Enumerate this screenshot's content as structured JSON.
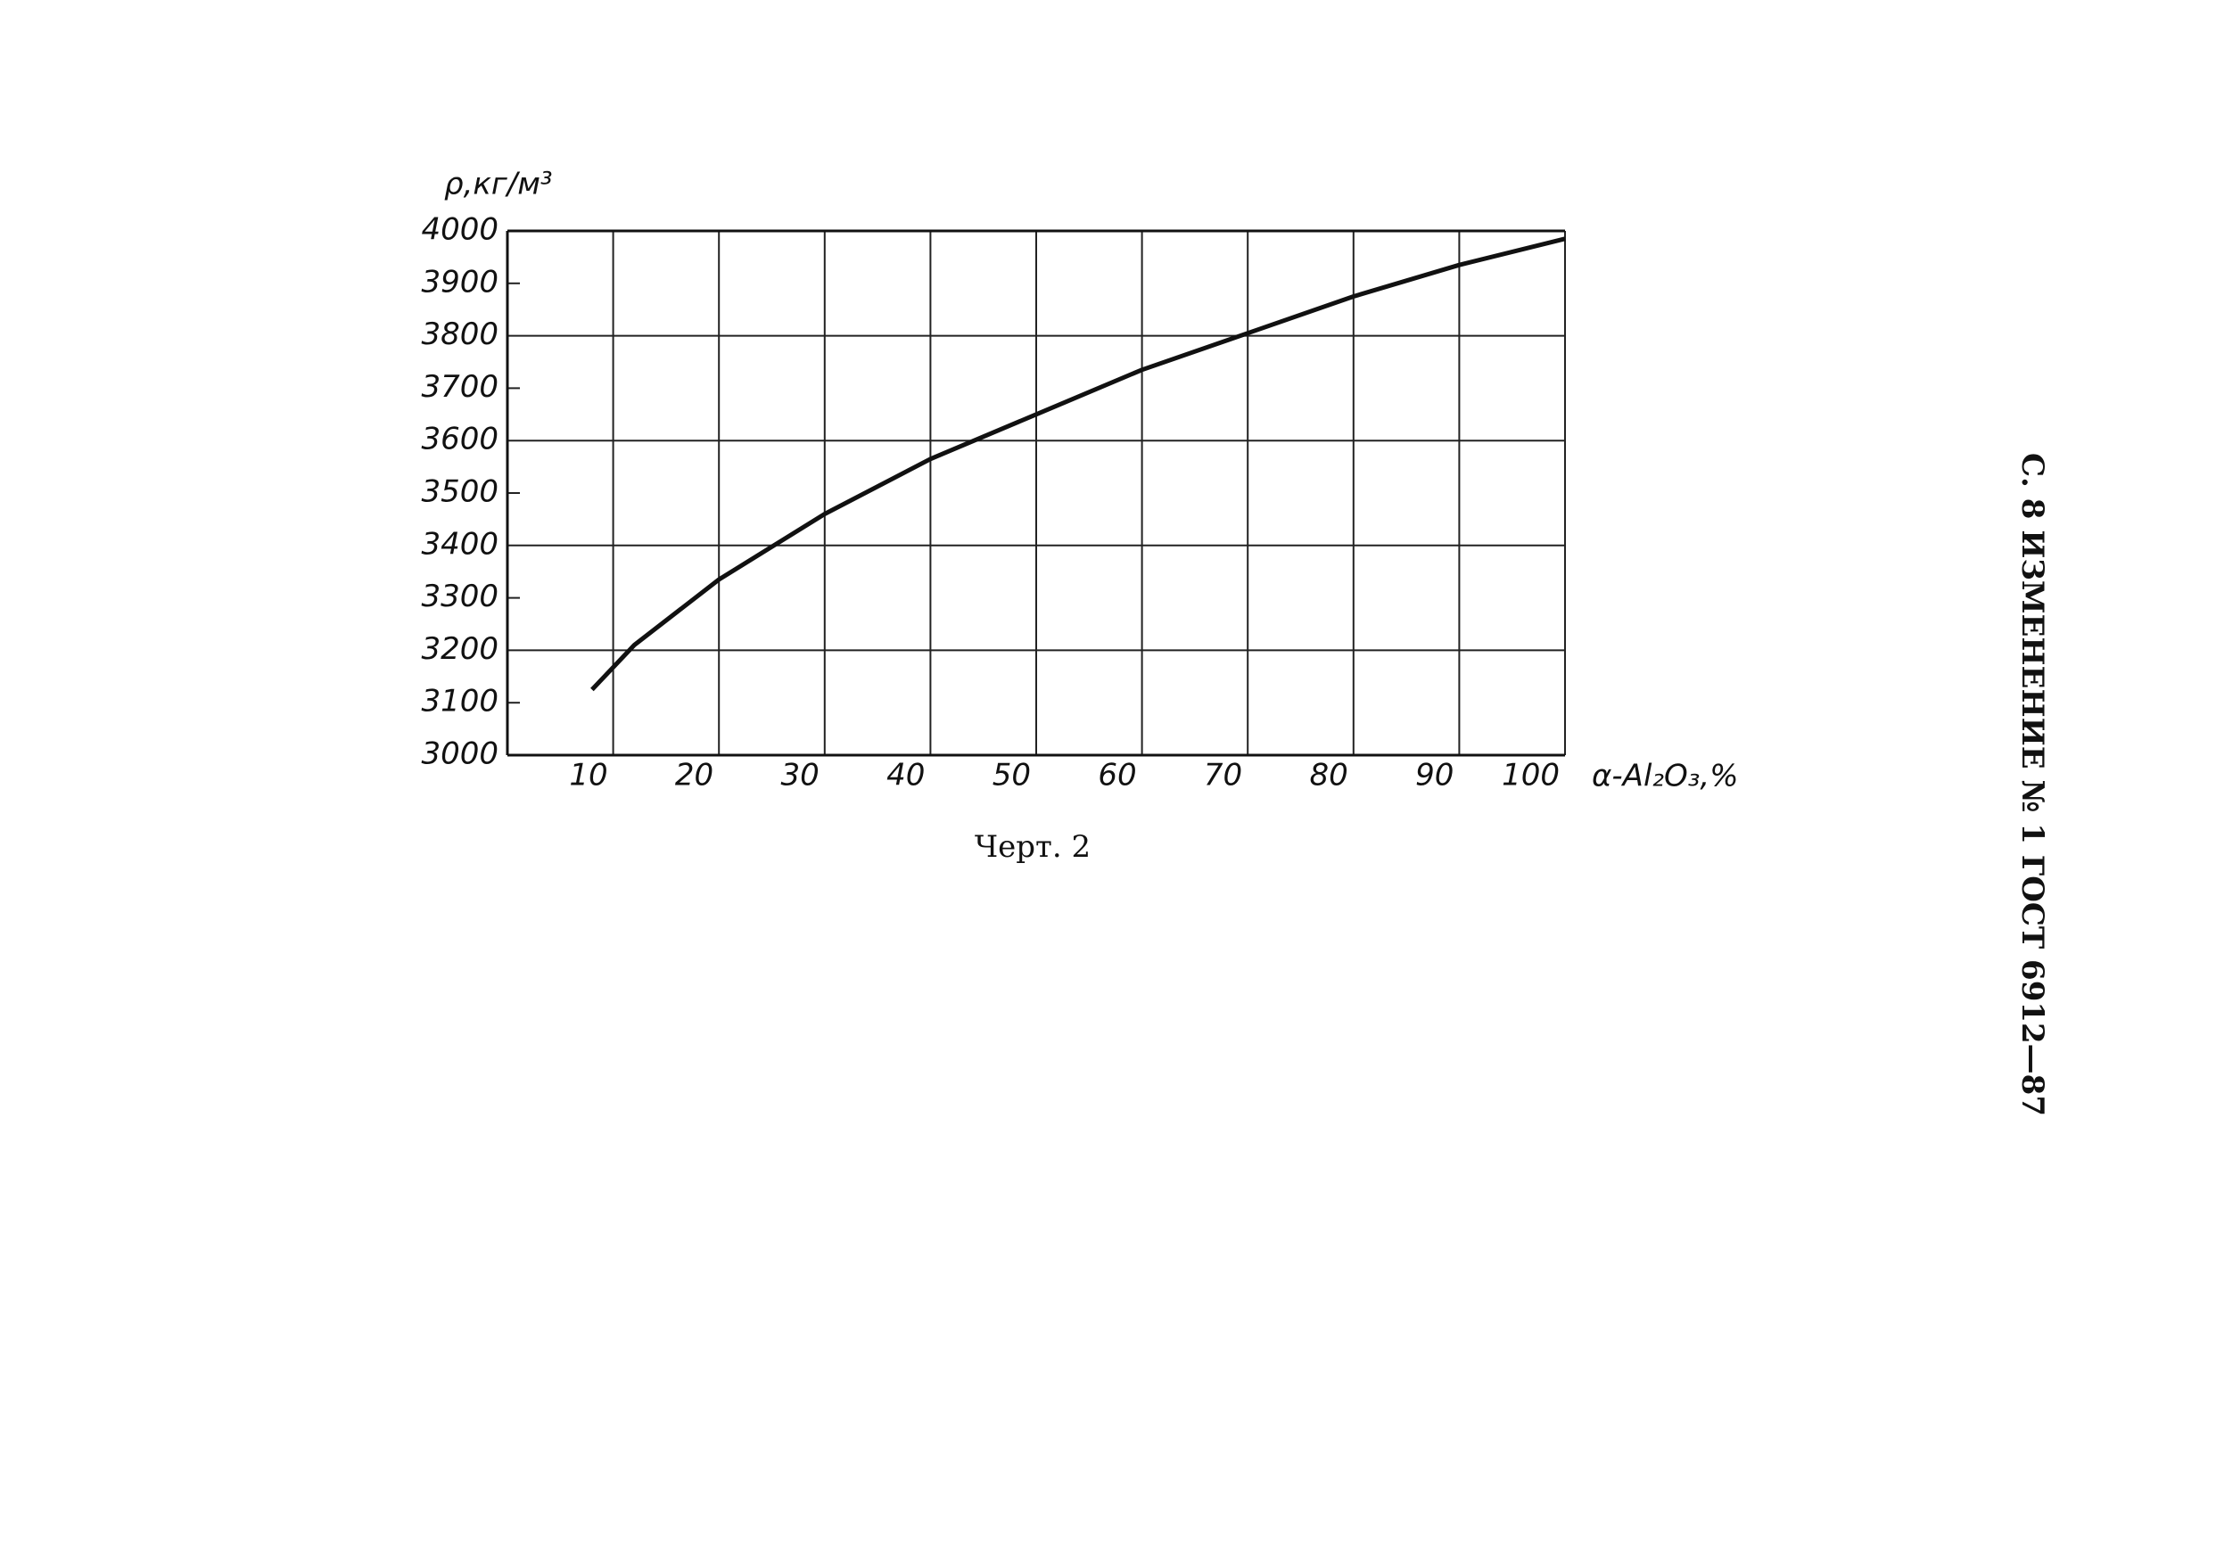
{
  "page_header": "С. 8 ИЗМЕНЕНИЕ № 1 ГОСТ 6912—87",
  "caption": "Черт. 2",
  "chart_data": {
    "type": "line",
    "y_label": "ρ,кг/м³",
    "x_label": "α-Al₂O₃,%",
    "x": [
      8,
      12,
      20,
      26,
      30,
      40,
      50,
      60,
      70,
      80,
      90,
      100
    ],
    "values": [
      3125,
      3210,
      3335,
      3410,
      3460,
      3565,
      3650,
      3735,
      3805,
      3875,
      3935,
      3985
    ],
    "color": "#111111",
    "xlim": [
      0,
      100
    ],
    "ylim": [
      3000,
      4000
    ],
    "xticks": [
      10,
      20,
      30,
      40,
      50,
      60,
      70,
      80,
      90,
      100
    ],
    "yticks": [
      3000,
      3100,
      3200,
      3300,
      3400,
      3500,
      3600,
      3700,
      3800,
      3900,
      4000
    ],
    "grid": true
  }
}
